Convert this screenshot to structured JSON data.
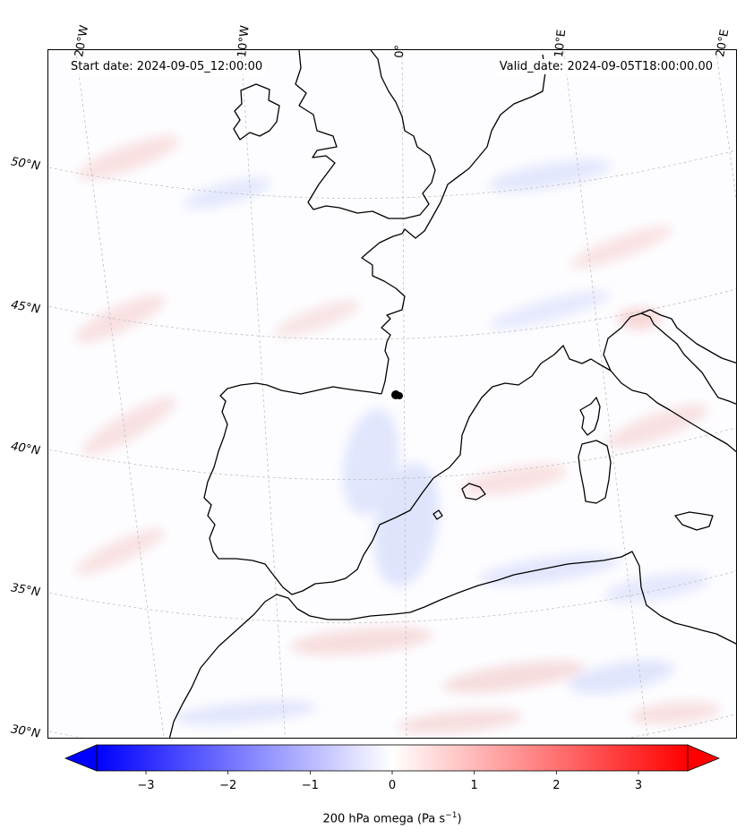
{
  "header": {
    "start_date": "Start date: 2024-09-05_12:00:00",
    "valid_date": "Valid_date: 2024-09-05T18:00:00.00"
  },
  "map": {
    "projection": "lambert-conformal",
    "region": "Western Europe and Western Mediterranean",
    "lon_labels": [
      "20°W",
      "10°W",
      "0°",
      "10°E",
      "20°E"
    ],
    "lat_labels": [
      "50°N",
      "45°N",
      "40°N",
      "35°N",
      "30°N"
    ],
    "marker": "station-point",
    "coastline_color": "#000000",
    "gridline_color": "#b0b0b0"
  },
  "colorbar": {
    "label_prefix": "200 hPa omega (Pa s",
    "label_sup": "−1",
    "label_suffix": ")",
    "ticks": [
      "−3",
      "−2",
      "−1",
      "0",
      "1",
      "2",
      "3"
    ],
    "tick_values": [
      -3,
      -2,
      -1,
      0,
      1,
      2,
      3
    ],
    "range": [
      -3.6,
      3.6
    ],
    "colormap": "bwr",
    "extend": "both",
    "color_low": "#0000ff",
    "color_mid": "#ffffff",
    "color_high": "#ff0000"
  }
}
